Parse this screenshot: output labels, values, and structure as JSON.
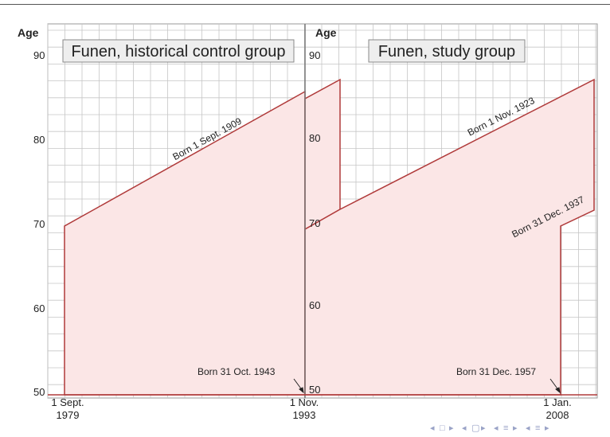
{
  "panels": {
    "left": {
      "title": "Funen, historical control group",
      "age_label": "Age",
      "y_ticks": [
        "90",
        "80",
        "70",
        "60",
        "50"
      ],
      "x_start_label": [
        "1 Sept.",
        "1979"
      ],
      "x_end_label": [
        "1 Nov.",
        "1993"
      ],
      "born_top": "Born 1 Sept. 1909",
      "born_bottom": "Born 31 Oct. 1943"
    },
    "right": {
      "title": "Funen, study group",
      "age_label": "Age",
      "y_ticks": [
        "90",
        "80",
        "70",
        "60",
        "50"
      ],
      "x_end_label": [
        "1 Jan.",
        "2008"
      ],
      "born_top": "Born 1 Nov. 1923",
      "born_mid": "Born 31 Dec. 1937",
      "born_bottom": "Born 31 Dec. 1957"
    }
  },
  "nav_icons": [
    "triangle-left-icon",
    "square-icon",
    "triangle-right-icon",
    "triangle-left-icon",
    "frame-icon",
    "triangle-right-icon",
    "triangle-left-icon",
    "equiv-icon",
    "triangle-right-icon",
    "triangle-left-icon",
    "equiv-icon",
    "triangle-right-icon"
  ],
  "colors": {
    "fill": "#fbe6e6",
    "outline": "#b03a3a",
    "grid": "#c6c6c6",
    "divider": "#777777"
  }
}
